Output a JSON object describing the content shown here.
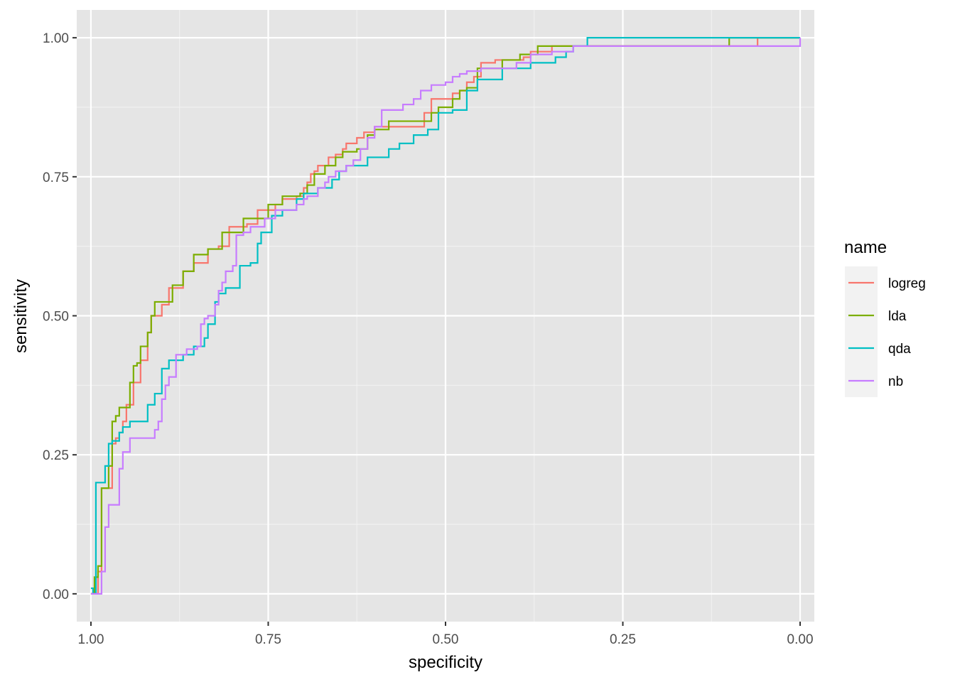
{
  "chart_data": {
    "type": "line",
    "title": "",
    "xlabel": "specificity",
    "ylabel": "sensitivity",
    "xlim": [
      1.02,
      -0.02
    ],
    "ylim": [
      -0.05,
      1.05
    ],
    "x_reversed": true,
    "xticks": [
      1.0,
      0.75,
      0.5,
      0.25,
      0.0
    ],
    "xtick_labels": [
      "1.00",
      "0.75",
      "0.50",
      "0.25",
      "0.00"
    ],
    "yticks": [
      0.0,
      0.25,
      0.5,
      0.75,
      1.0
    ],
    "ytick_labels": [
      "0.00",
      "0.25",
      "0.50",
      "0.75",
      "1.00"
    ],
    "grid": true,
    "background": "#e5e5e5",
    "legend": {
      "title": "name",
      "position": "right"
    },
    "series": [
      {
        "name": "logreg",
        "color": "#f8766d",
        "x": [
          1.0,
          0.995,
          0.99,
          0.985,
          0.975,
          0.97,
          0.965,
          0.96,
          0.955,
          0.95,
          0.94,
          0.93,
          0.92,
          0.915,
          0.9,
          0.89,
          0.87,
          0.855,
          0.835,
          0.82,
          0.805,
          0.79,
          0.78,
          0.765,
          0.74,
          0.73,
          0.71,
          0.7,
          0.695,
          0.69,
          0.685,
          0.68,
          0.665,
          0.655,
          0.645,
          0.64,
          0.625,
          0.615,
          0.6,
          0.58,
          0.55,
          0.53,
          0.52,
          0.5,
          0.49,
          0.48,
          0.47,
          0.46,
          0.45,
          0.43,
          0.41,
          0.39,
          0.38,
          0.35,
          0.3,
          0.25,
          0.2,
          0.15,
          0.1,
          0.06,
          0.03,
          0.0
        ],
        "y": [
          0.0,
          0.0,
          0.04,
          0.19,
          0.19,
          0.27,
          0.28,
          0.29,
          0.31,
          0.34,
          0.38,
          0.42,
          0.47,
          0.5,
          0.52,
          0.55,
          0.58,
          0.595,
          0.62,
          0.625,
          0.66,
          0.66,
          0.665,
          0.69,
          0.7,
          0.71,
          0.715,
          0.73,
          0.74,
          0.755,
          0.76,
          0.77,
          0.785,
          0.79,
          0.8,
          0.81,
          0.82,
          0.83,
          0.84,
          0.84,
          0.84,
          0.865,
          0.89,
          0.89,
          0.9,
          0.905,
          0.92,
          0.93,
          0.955,
          0.96,
          0.96,
          0.965,
          0.975,
          0.985,
          0.985,
          0.985,
          0.985,
          0.985,
          0.985,
          1.0,
          1.0,
          1.0
        ]
      },
      {
        "name": "lda",
        "color": "#7cae00",
        "x": [
          1.0,
          0.995,
          0.99,
          0.985,
          0.98,
          0.975,
          0.97,
          0.965,
          0.96,
          0.955,
          0.945,
          0.94,
          0.935,
          0.93,
          0.92,
          0.915,
          0.91,
          0.895,
          0.885,
          0.87,
          0.855,
          0.835,
          0.815,
          0.8,
          0.785,
          0.77,
          0.75,
          0.73,
          0.715,
          0.705,
          0.695,
          0.685,
          0.67,
          0.655,
          0.645,
          0.625,
          0.61,
          0.6,
          0.58,
          0.56,
          0.535,
          0.52,
          0.51,
          0.49,
          0.48,
          0.47,
          0.455,
          0.42,
          0.395,
          0.37,
          0.33,
          0.28,
          0.2,
          0.15,
          0.1,
          0.05,
          0.0
        ],
        "y": [
          0.0,
          0.03,
          0.05,
          0.19,
          0.19,
          0.23,
          0.31,
          0.32,
          0.335,
          0.335,
          0.38,
          0.41,
          0.415,
          0.445,
          0.47,
          0.5,
          0.525,
          0.525,
          0.555,
          0.58,
          0.61,
          0.62,
          0.65,
          0.65,
          0.675,
          0.675,
          0.7,
          0.715,
          0.715,
          0.72,
          0.735,
          0.755,
          0.77,
          0.785,
          0.795,
          0.8,
          0.825,
          0.835,
          0.85,
          0.85,
          0.85,
          0.865,
          0.875,
          0.89,
          0.905,
          0.91,
          0.945,
          0.96,
          0.97,
          0.985,
          0.985,
          0.985,
          0.985,
          0.985,
          1.0,
          1.0,
          1.0
        ]
      },
      {
        "name": "qda",
        "color": "#00bfc4",
        "x": [
          1.0,
          0.997,
          0.993,
          0.985,
          0.98,
          0.975,
          0.97,
          0.96,
          0.955,
          0.945,
          0.935,
          0.92,
          0.91,
          0.9,
          0.89,
          0.87,
          0.855,
          0.84,
          0.835,
          0.825,
          0.82,
          0.81,
          0.79,
          0.775,
          0.765,
          0.76,
          0.745,
          0.73,
          0.71,
          0.7,
          0.68,
          0.66,
          0.65,
          0.64,
          0.61,
          0.595,
          0.58,
          0.565,
          0.545,
          0.525,
          0.51,
          0.49,
          0.47,
          0.455,
          0.42,
          0.38,
          0.345,
          0.33,
          0.32,
          0.3,
          0.25,
          0.2,
          0.1,
          0.0
        ],
        "y": [
          0.01,
          0.0,
          0.2,
          0.2,
          0.23,
          0.27,
          0.275,
          0.29,
          0.3,
          0.31,
          0.31,
          0.34,
          0.36,
          0.405,
          0.42,
          0.43,
          0.445,
          0.46,
          0.485,
          0.525,
          0.54,
          0.55,
          0.59,
          0.595,
          0.63,
          0.65,
          0.68,
          0.69,
          0.71,
          0.72,
          0.73,
          0.745,
          0.76,
          0.77,
          0.785,
          0.785,
          0.8,
          0.81,
          0.825,
          0.835,
          0.865,
          0.87,
          0.905,
          0.925,
          0.945,
          0.955,
          0.965,
          0.975,
          0.985,
          1.0,
          1.0,
          1.0,
          1.0,
          1.0
        ]
      },
      {
        "name": "nb",
        "color": "#c77cff",
        "x": [
          1.0,
          0.99,
          0.985,
          0.98,
          0.975,
          0.97,
          0.96,
          0.955,
          0.945,
          0.935,
          0.92,
          0.91,
          0.905,
          0.9,
          0.895,
          0.89,
          0.88,
          0.865,
          0.85,
          0.845,
          0.84,
          0.835,
          0.825,
          0.82,
          0.815,
          0.81,
          0.8,
          0.795,
          0.785,
          0.775,
          0.755,
          0.74,
          0.725,
          0.71,
          0.7,
          0.695,
          0.68,
          0.67,
          0.665,
          0.655,
          0.64,
          0.63,
          0.62,
          0.61,
          0.6,
          0.59,
          0.56,
          0.545,
          0.535,
          0.52,
          0.5,
          0.49,
          0.48,
          0.47,
          0.45,
          0.42,
          0.4,
          0.38,
          0.35,
          0.32,
          0.3,
          0.2,
          0.1,
          0.05,
          0.015,
          0.0
        ],
        "y": [
          0.0,
          0.0,
          0.04,
          0.12,
          0.16,
          0.16,
          0.225,
          0.255,
          0.28,
          0.28,
          0.28,
          0.295,
          0.31,
          0.35,
          0.375,
          0.39,
          0.43,
          0.44,
          0.445,
          0.485,
          0.495,
          0.5,
          0.52,
          0.545,
          0.56,
          0.58,
          0.59,
          0.645,
          0.65,
          0.66,
          0.675,
          0.69,
          0.69,
          0.7,
          0.71,
          0.715,
          0.73,
          0.74,
          0.75,
          0.76,
          0.77,
          0.78,
          0.8,
          0.82,
          0.84,
          0.87,
          0.88,
          0.89,
          0.905,
          0.915,
          0.92,
          0.93,
          0.935,
          0.94,
          0.945,
          0.945,
          0.955,
          0.97,
          0.975,
          0.985,
          0.985,
          0.985,
          0.985,
          0.985,
          0.985,
          1.0
        ]
      }
    ]
  }
}
